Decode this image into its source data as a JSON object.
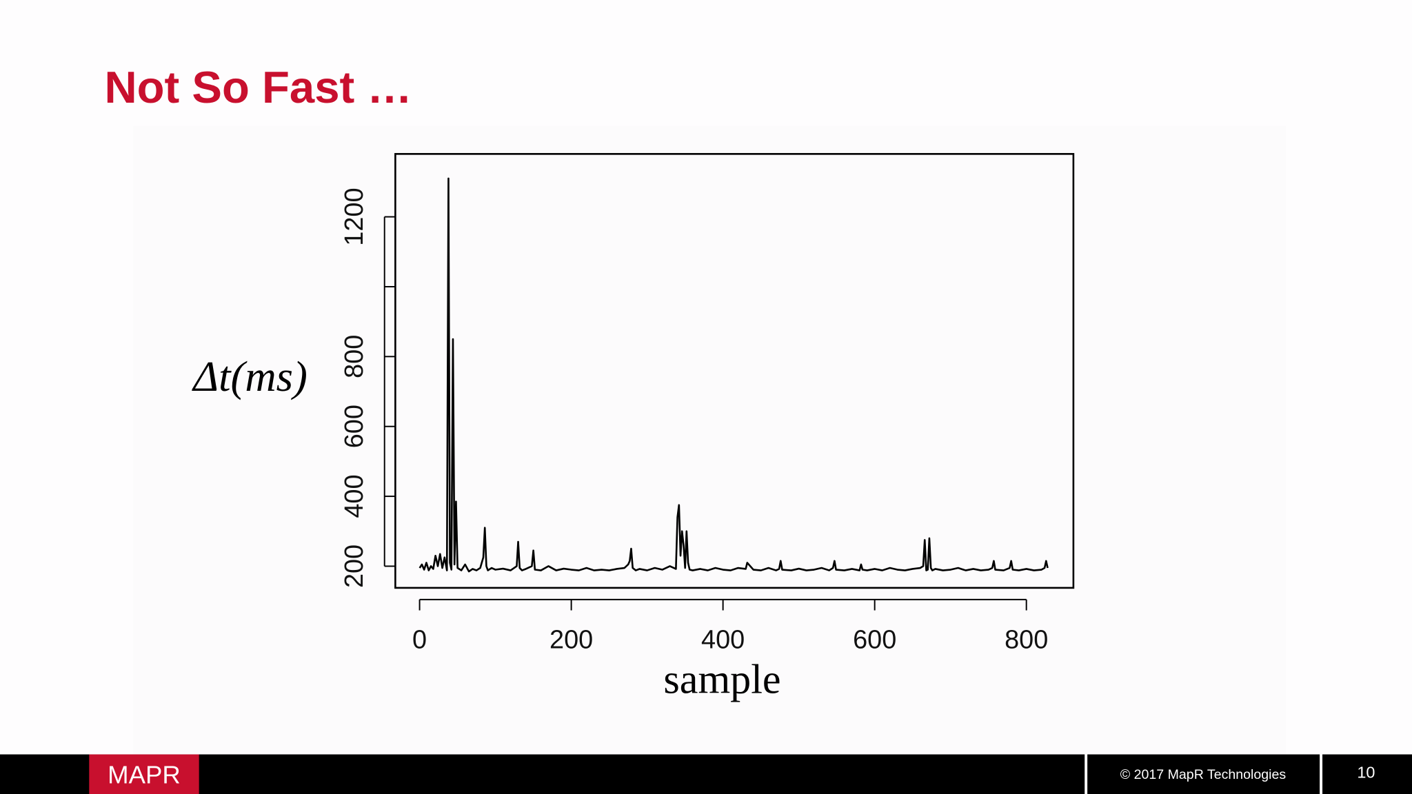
{
  "title": "Not So Fast …",
  "chart_data": {
    "type": "line",
    "xlabel": "sample",
    "ylabel": "Δt(ms)",
    "color": "#000000",
    "x": [
      0,
      3,
      6,
      9,
      12,
      15,
      18,
      21,
      24,
      27,
      30,
      33,
      36,
      38,
      40,
      42,
      44,
      46,
      48,
      50,
      55,
      60,
      65,
      70,
      75,
      80,
      84,
      86,
      88,
      90,
      95,
      100,
      110,
      120,
      128,
      130,
      132,
      135,
      140,
      148,
      150,
      152,
      160,
      170,
      180,
      190,
      200,
      210,
      220,
      230,
      240,
      250,
      260,
      270,
      275,
      277,
      279,
      281,
      285,
      290,
      300,
      310,
      320,
      330,
      338,
      340,
      342,
      344,
      346,
      348,
      350,
      352,
      354,
      356,
      360,
      370,
      380,
      390,
      400,
      410,
      420,
      430,
      432,
      440,
      450,
      460,
      470,
      474,
      476,
      478,
      490,
      500,
      510,
      520,
      530,
      540,
      545,
      547,
      549,
      560,
      570,
      580,
      582,
      584,
      590,
      600,
      610,
      620,
      630,
      640,
      650,
      660,
      664,
      666,
      668,
      670,
      672,
      674,
      676,
      680,
      690,
      700,
      710,
      720,
      730,
      740,
      750,
      755,
      757,
      759,
      770,
      778,
      780,
      782,
      790,
      800,
      810,
      820,
      824,
      826,
      828
    ],
    "values": [
      195,
      205,
      190,
      210,
      188,
      200,
      192,
      230,
      200,
      235,
      195,
      225,
      188,
      1310,
      210,
      190,
      850,
      205,
      385,
      195,
      188,
      205,
      185,
      192,
      188,
      195,
      225,
      310,
      200,
      188,
      195,
      190,
      193,
      188,
      200,
      270,
      195,
      188,
      192,
      200,
      245,
      190,
      188,
      200,
      188,
      193,
      190,
      188,
      195,
      188,
      190,
      188,
      192,
      195,
      205,
      215,
      250,
      195,
      188,
      192,
      188,
      195,
      190,
      200,
      192,
      340,
      375,
      230,
      300,
      260,
      195,
      300,
      210,
      190,
      188,
      192,
      188,
      195,
      190,
      188,
      195,
      192,
      210,
      190,
      188,
      195,
      188,
      192,
      215,
      190,
      188,
      193,
      188,
      190,
      195,
      188,
      195,
      215,
      190,
      188,
      192,
      188,
      205,
      190,
      188,
      192,
      188,
      195,
      190,
      188,
      192,
      195,
      200,
      275,
      188,
      190,
      280,
      195,
      188,
      192,
      188,
      190,
      195,
      188,
      192,
      188,
      190,
      195,
      215,
      190,
      188,
      195,
      215,
      190,
      188,
      192,
      188,
      190,
      195,
      215,
      195
    ],
    "xlim": [
      -32,
      862
    ],
    "ylim": [
      138,
      1380
    ],
    "xticks": [
      0,
      200,
      400,
      600,
      800
    ],
    "yticks": [
      200,
      400,
      600,
      800,
      {
        "value": 1000,
        "label": null
      },
      1200
    ]
  },
  "footer": {
    "logo": "MAPR",
    "copyright": "© 2017 MapR Technologies",
    "page": "10"
  }
}
